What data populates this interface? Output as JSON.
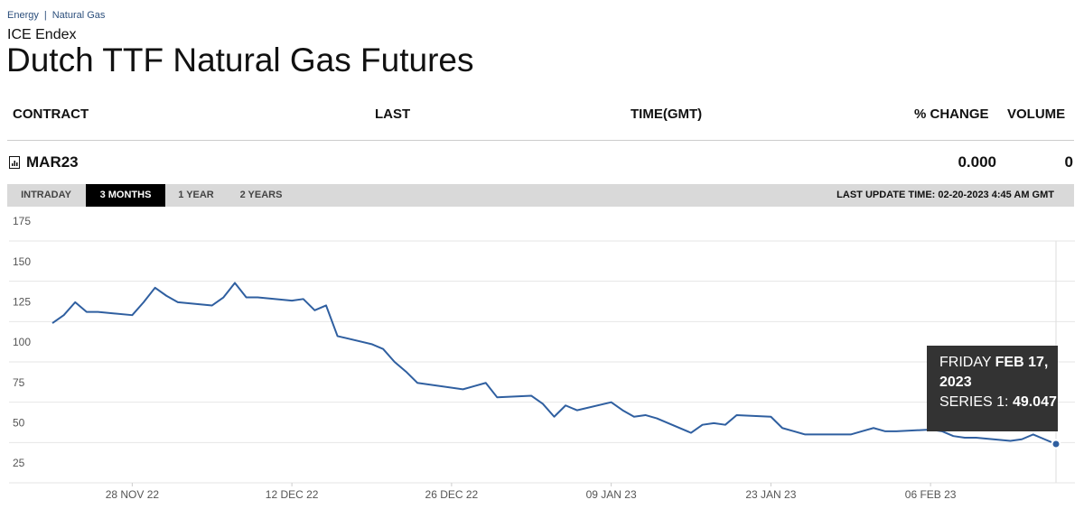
{
  "breadcrumb": {
    "items": [
      "Energy",
      "Natural Gas"
    ],
    "separator": "|"
  },
  "exchange": "ICE Endex",
  "title": "Dutch TTF Natural Gas Futures",
  "table": {
    "headers": [
      "CONTRACT",
      "LAST",
      "TIME(GMT)",
      "% CHANGE",
      "VOLUME"
    ],
    "row": {
      "contract": "MAR23",
      "pct_change": "0.000",
      "volume": "0"
    }
  },
  "tabs": {
    "items": [
      "INTRADAY",
      "3 MONTHS",
      "1 YEAR",
      "2 YEARS"
    ],
    "active": 1
  },
  "last_update": "LAST UPDATE TIME: 02-20-2023 4:45 AM GMT",
  "chart_data": {
    "type": "line",
    "color": "#2f5fa0",
    "x": [
      "2022-11-21",
      "2022-11-22",
      "2022-11-23",
      "2022-11-24",
      "2022-11-25",
      "2022-11-28",
      "2022-11-29",
      "2022-11-30",
      "2022-12-01",
      "2022-12-02",
      "2022-12-05",
      "2022-12-06",
      "2022-12-07",
      "2022-12-08",
      "2022-12-09",
      "2022-12-12",
      "2022-12-13",
      "2022-12-14",
      "2022-12-15",
      "2022-12-16",
      "2022-12-19",
      "2022-12-20",
      "2022-12-21",
      "2022-12-22",
      "2022-12-23",
      "2022-12-27",
      "2022-12-28",
      "2022-12-29",
      "2022-12-30",
      "2023-01-02",
      "2023-01-03",
      "2023-01-04",
      "2023-01-05",
      "2023-01-06",
      "2023-01-09",
      "2023-01-10",
      "2023-01-11",
      "2023-01-12",
      "2023-01-13",
      "2023-01-16",
      "2023-01-17",
      "2023-01-18",
      "2023-01-19",
      "2023-01-20",
      "2023-01-23",
      "2023-01-24",
      "2023-01-25",
      "2023-01-26",
      "2023-01-27",
      "2023-01-30",
      "2023-01-31",
      "2023-02-01",
      "2023-02-02",
      "2023-02-03",
      "2023-02-06",
      "2023-02-07",
      "2023-02-08",
      "2023-02-09",
      "2023-02-10",
      "2023-02-13",
      "2023-02-14",
      "2023-02-15",
      "2023-02-16",
      "2023-02-17"
    ],
    "values": [
      124,
      129,
      137,
      131,
      131,
      129,
      137,
      146,
      141,
      137,
      135,
      140,
      149,
      140,
      140,
      138,
      139,
      132,
      135,
      116,
      111,
      108,
      100,
      94,
      87,
      83,
      85,
      87,
      78,
      79,
      74,
      66,
      73,
      70,
      75,
      70,
      66,
      67,
      65,
      56,
      61,
      62,
      61,
      67,
      66,
      59,
      57,
      55,
      55,
      55,
      57,
      59,
      57,
      57,
      58,
      57,
      54,
      53,
      53,
      51,
      52,
      55,
      52,
      49.047
    ],
    "xlim": [
      "2022-11-21",
      "2023-02-17"
    ],
    "xticks": [
      {
        "value": "2022-11-28",
        "label": "28 NOV 22"
      },
      {
        "value": "2022-12-12",
        "label": "12 DEC 22"
      },
      {
        "value": "2022-12-26",
        "label": "26 DEC 22"
      },
      {
        "value": "2023-01-09",
        "label": "09 JAN 23"
      },
      {
        "value": "2023-01-23",
        "label": "23 JAN 23"
      },
      {
        "value": "2023-02-06",
        "label": "06 FEB 23"
      }
    ],
    "ylim": [
      25,
      175
    ],
    "yticks": [
      25,
      50,
      75,
      100,
      125,
      150,
      175
    ],
    "grid": true,
    "tooltip": {
      "day": "FRIDAY",
      "date": "FEB 17, 2023",
      "series_label": "SERIES 1:",
      "index": 63
    }
  }
}
